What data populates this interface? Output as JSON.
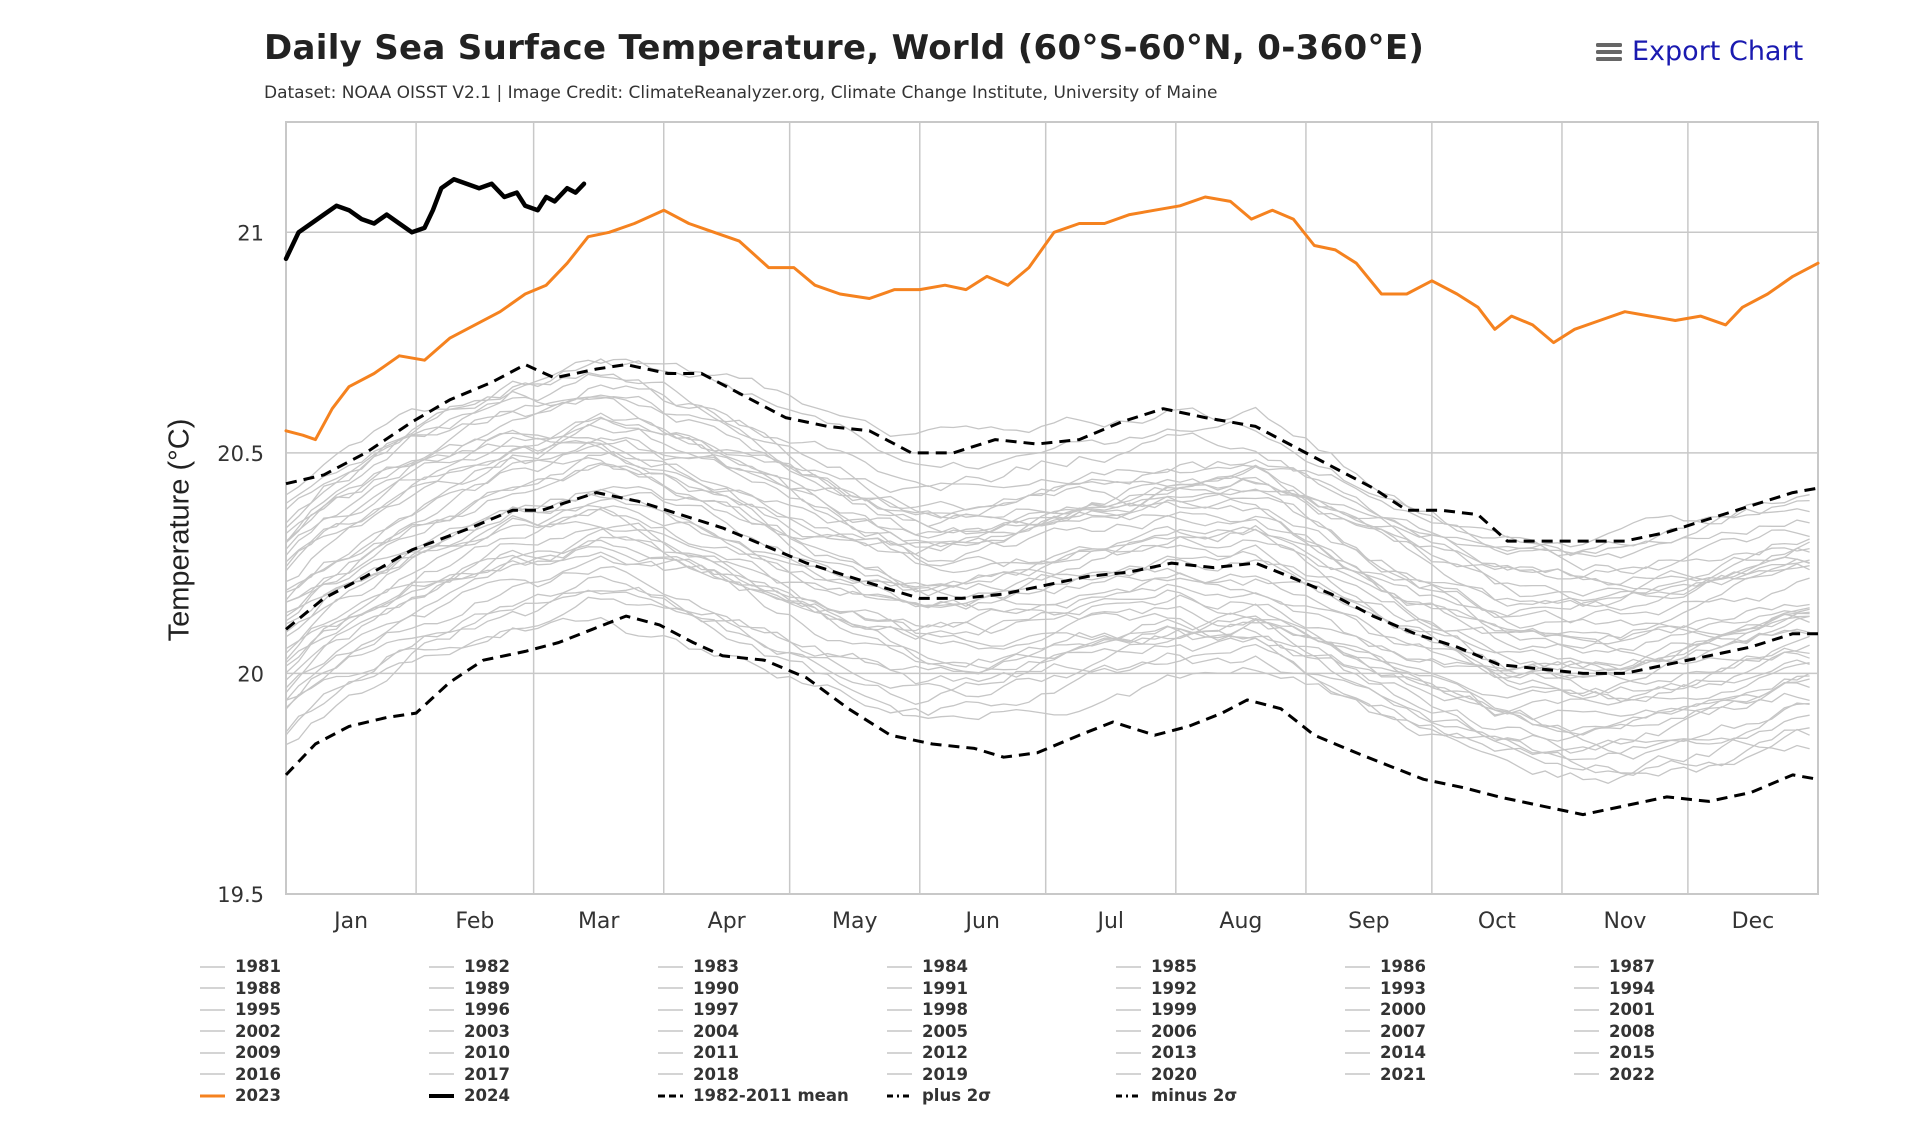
{
  "title": "Daily Sea Surface Temperature, World (60°S-60°N, 0-360°E)",
  "subtitle": "Dataset: NOAA OISST V2.1 | Image Credit: ClimateReanalyzer.org, Climate Change Institute, University of Maine",
  "export_label": "Export Chart",
  "icons": {
    "export": "hamburger-menu-icon"
  },
  "colors": {
    "past_years": "#c6c6c6",
    "y2023": "#f5821f",
    "y2024": "#000000",
    "statistics": "#000000",
    "grid": "#c8c8c8"
  },
  "chart_data": {
    "type": "line",
    "title": "Daily Sea Surface Temperature, World (60°S-60°N, 0-360°E)",
    "subtitle": "Dataset: NOAA OISST V2.1 | Image Credit: ClimateReanalyzer.org, Climate Change Institute, University of Maine",
    "ylabel": "Temperature (°C)",
    "xlabel": "",
    "ylim": [
      19.5,
      21.25
    ],
    "yticks": [
      19.5,
      20,
      20.5,
      21
    ],
    "ytick_labels": [
      "19.5",
      "20",
      "20.5",
      "21"
    ],
    "xlim": [
      1,
      366
    ],
    "month_labels": [
      "Jan",
      "Feb",
      "Mar",
      "Apr",
      "May",
      "Jun",
      "Jul",
      "Aug",
      "Sep",
      "Oct",
      "Nov",
      "Dec"
    ],
    "month_start_days": [
      1,
      32,
      60,
      91,
      121,
      152,
      182,
      213,
      244,
      274,
      305,
      335
    ],
    "grid": true,
    "legend_position": "bottom",
    "series": [
      {
        "name": "2023",
        "style": "solid-orange",
        "points": [
          [
            1,
            20.55
          ],
          [
            5,
            20.54
          ],
          [
            8,
            20.53
          ],
          [
            12,
            20.6
          ],
          [
            16,
            20.65
          ],
          [
            22,
            20.68
          ],
          [
            28,
            20.72
          ],
          [
            34,
            20.71
          ],
          [
            40,
            20.76
          ],
          [
            46,
            20.79
          ],
          [
            52,
            20.82
          ],
          [
            58,
            20.86
          ],
          [
            63,
            20.88
          ],
          [
            68,
            20.93
          ],
          [
            73,
            20.99
          ],
          [
            78,
            21.0
          ],
          [
            84,
            21.02
          ],
          [
            91,
            21.05
          ],
          [
            97,
            21.02
          ],
          [
            103,
            21.0
          ],
          [
            109,
            20.98
          ],
          [
            116,
            20.92
          ],
          [
            122,
            20.92
          ],
          [
            127,
            20.88
          ],
          [
            133,
            20.86
          ],
          [
            140,
            20.85
          ],
          [
            146,
            20.87
          ],
          [
            152,
            20.87
          ],
          [
            158,
            20.88
          ],
          [
            163,
            20.87
          ],
          [
            168,
            20.9
          ],
          [
            173,
            20.88
          ],
          [
            178,
            20.92
          ],
          [
            184,
            21.0
          ],
          [
            190,
            21.02
          ],
          [
            196,
            21.02
          ],
          [
            202,
            21.04
          ],
          [
            208,
            21.05
          ],
          [
            214,
            21.06
          ],
          [
            220,
            21.08
          ],
          [
            226,
            21.07
          ],
          [
            231,
            21.03
          ],
          [
            236,
            21.05
          ],
          [
            241,
            21.03
          ],
          [
            246,
            20.97
          ],
          [
            251,
            20.96
          ],
          [
            256,
            20.93
          ],
          [
            262,
            20.86
          ],
          [
            268,
            20.86
          ],
          [
            274,
            20.89
          ],
          [
            280,
            20.86
          ],
          [
            285,
            20.83
          ],
          [
            289,
            20.78
          ],
          [
            293,
            20.81
          ],
          [
            298,
            20.79
          ],
          [
            303,
            20.75
          ],
          [
            308,
            20.78
          ],
          [
            314,
            20.8
          ],
          [
            320,
            20.82
          ],
          [
            326,
            20.81
          ],
          [
            332,
            20.8
          ],
          [
            338,
            20.81
          ],
          [
            344,
            20.79
          ],
          [
            348,
            20.83
          ],
          [
            354,
            20.86
          ],
          [
            360,
            20.9
          ],
          [
            366,
            20.93
          ]
        ]
      },
      {
        "name": "2024",
        "style": "solid-black-thick",
        "points": [
          [
            1,
            20.94
          ],
          [
            4,
            21.0
          ],
          [
            7,
            21.02
          ],
          [
            10,
            21.04
          ],
          [
            13,
            21.06
          ],
          [
            16,
            21.05
          ],
          [
            19,
            21.03
          ],
          [
            22,
            21.02
          ],
          [
            25,
            21.04
          ],
          [
            28,
            21.02
          ],
          [
            31,
            21.0
          ],
          [
            34,
            21.01
          ],
          [
            36,
            21.05
          ],
          [
            38,
            21.1
          ],
          [
            41,
            21.12
          ],
          [
            44,
            21.11
          ],
          [
            47,
            21.1
          ],
          [
            50,
            21.11
          ],
          [
            53,
            21.08
          ],
          [
            56,
            21.09
          ],
          [
            58,
            21.06
          ],
          [
            61,
            21.05
          ],
          [
            63,
            21.08
          ],
          [
            65,
            21.07
          ],
          [
            68,
            21.1
          ],
          [
            70,
            21.09
          ],
          [
            72,
            21.11
          ]
        ]
      },
      {
        "name": "1982-2011 mean",
        "style": "dashed",
        "points": [
          [
            1,
            20.1
          ],
          [
            10,
            20.17
          ],
          [
            20,
            20.22
          ],
          [
            31,
            20.28
          ],
          [
            45,
            20.33
          ],
          [
            55,
            20.37
          ],
          [
            62,
            20.37
          ],
          [
            75,
            20.41
          ],
          [
            85,
            20.39
          ],
          [
            95,
            20.36
          ],
          [
            105,
            20.33
          ],
          [
            115,
            20.29
          ],
          [
            125,
            20.25
          ],
          [
            135,
            20.22
          ],
          [
            145,
            20.19
          ],
          [
            152,
            20.17
          ],
          [
            162,
            20.17
          ],
          [
            172,
            20.18
          ],
          [
            182,
            20.2
          ],
          [
            192,
            20.22
          ],
          [
            202,
            20.23
          ],
          [
            212,
            20.25
          ],
          [
            222,
            20.24
          ],
          [
            232,
            20.25
          ],
          [
            240,
            20.22
          ],
          [
            250,
            20.18
          ],
          [
            260,
            20.13
          ],
          [
            270,
            20.09
          ],
          [
            280,
            20.06
          ],
          [
            290,
            20.02
          ],
          [
            300,
            20.01
          ],
          [
            310,
            20.0
          ],
          [
            320,
            20.0
          ],
          [
            330,
            20.02
          ],
          [
            340,
            20.04
          ],
          [
            350,
            20.06
          ],
          [
            360,
            20.09
          ],
          [
            366,
            20.09
          ]
        ]
      },
      {
        "name": "plus 2σ",
        "style": "dashed",
        "points": [
          [
            1,
            20.43
          ],
          [
            10,
            20.45
          ],
          [
            20,
            20.5
          ],
          [
            31,
            20.57
          ],
          [
            40,
            20.62
          ],
          [
            50,
            20.66
          ],
          [
            58,
            20.7
          ],
          [
            65,
            20.67
          ],
          [
            75,
            20.69
          ],
          [
            82,
            20.7
          ],
          [
            92,
            20.68
          ],
          [
            100,
            20.68
          ],
          [
            110,
            20.63
          ],
          [
            120,
            20.58
          ],
          [
            130,
            20.56
          ],
          [
            140,
            20.55
          ],
          [
            150,
            20.5
          ],
          [
            160,
            20.5
          ],
          [
            170,
            20.53
          ],
          [
            180,
            20.52
          ],
          [
            190,
            20.53
          ],
          [
            200,
            20.57
          ],
          [
            210,
            20.6
          ],
          [
            220,
            20.58
          ],
          [
            232,
            20.56
          ],
          [
            240,
            20.52
          ],
          [
            250,
            20.47
          ],
          [
            260,
            20.42
          ],
          [
            268,
            20.37
          ],
          [
            276,
            20.37
          ],
          [
            285,
            20.36
          ],
          [
            292,
            20.3
          ],
          [
            300,
            20.3
          ],
          [
            310,
            20.3
          ],
          [
            320,
            20.3
          ],
          [
            330,
            20.32
          ],
          [
            340,
            20.35
          ],
          [
            350,
            20.38
          ],
          [
            360,
            20.41
          ],
          [
            366,
            20.42
          ]
        ]
      },
      {
        "name": "minus 2σ",
        "style": "dashed",
        "points": [
          [
            1,
            19.77
          ],
          [
            8,
            19.84
          ],
          [
            16,
            19.88
          ],
          [
            25,
            19.9
          ],
          [
            32,
            19.91
          ],
          [
            40,
            19.98
          ],
          [
            48,
            20.03
          ],
          [
            58,
            20.05
          ],
          [
            66,
            20.07
          ],
          [
            74,
            20.1
          ],
          [
            82,
            20.13
          ],
          [
            90,
            20.11
          ],
          [
            98,
            20.07
          ],
          [
            105,
            20.04
          ],
          [
            115,
            20.03
          ],
          [
            125,
            19.99
          ],
          [
            135,
            19.92
          ],
          [
            145,
            19.86
          ],
          [
            155,
            19.84
          ],
          [
            165,
            19.83
          ],
          [
            172,
            19.81
          ],
          [
            180,
            19.82
          ],
          [
            190,
            19.86
          ],
          [
            198,
            19.89
          ],
          [
            208,
            19.86
          ],
          [
            216,
            19.88
          ],
          [
            224,
            19.91
          ],
          [
            230,
            19.94
          ],
          [
            238,
            19.92
          ],
          [
            246,
            19.86
          ],
          [
            256,
            19.82
          ],
          [
            264,
            19.79
          ],
          [
            272,
            19.76
          ],
          [
            282,
            19.74
          ],
          [
            290,
            19.72
          ],
          [
            300,
            19.7
          ],
          [
            310,
            19.68
          ],
          [
            320,
            19.7
          ],
          [
            330,
            19.72
          ],
          [
            340,
            19.71
          ],
          [
            350,
            19.73
          ],
          [
            360,
            19.77
          ],
          [
            366,
            19.76
          ]
        ]
      }
    ],
    "background_years": [
      "1981",
      "1982",
      "1983",
      "1984",
      "1985",
      "1986",
      "1987",
      "1988",
      "1989",
      "1990",
      "1991",
      "1992",
      "1993",
      "1994",
      "1995",
      "1996",
      "1997",
      "1998",
      "1999",
      "2000",
      "2001",
      "2002",
      "2003",
      "2004",
      "2005",
      "2006",
      "2007",
      "2008",
      "2009",
      "2010",
      "2011",
      "2012",
      "2013",
      "2014",
      "2015",
      "2016",
      "2017",
      "2018",
      "2019",
      "2020",
      "2021",
      "2022"
    ]
  },
  "legend": [
    {
      "label": "1981",
      "kind": "gray"
    },
    {
      "label": "1982",
      "kind": "gray"
    },
    {
      "label": "1983",
      "kind": "gray"
    },
    {
      "label": "1984",
      "kind": "gray"
    },
    {
      "label": "1985",
      "kind": "gray"
    },
    {
      "label": "1986",
      "kind": "gray"
    },
    {
      "label": "1987",
      "kind": "gray"
    },
    {
      "label": "1988",
      "kind": "gray"
    },
    {
      "label": "1989",
      "kind": "gray"
    },
    {
      "label": "1990",
      "kind": "gray"
    },
    {
      "label": "1991",
      "kind": "gray"
    },
    {
      "label": "1992",
      "kind": "gray"
    },
    {
      "label": "1993",
      "kind": "gray"
    },
    {
      "label": "1994",
      "kind": "gray"
    },
    {
      "label": "1995",
      "kind": "gray"
    },
    {
      "label": "1996",
      "kind": "gray"
    },
    {
      "label": "1997",
      "kind": "gray"
    },
    {
      "label": "1998",
      "kind": "gray"
    },
    {
      "label": "1999",
      "kind": "gray"
    },
    {
      "label": "2000",
      "kind": "gray"
    },
    {
      "label": "2001",
      "kind": "gray"
    },
    {
      "label": "2002",
      "kind": "gray"
    },
    {
      "label": "2003",
      "kind": "gray"
    },
    {
      "label": "2004",
      "kind": "gray"
    },
    {
      "label": "2005",
      "kind": "gray"
    },
    {
      "label": "2006",
      "kind": "gray"
    },
    {
      "label": "2007",
      "kind": "gray"
    },
    {
      "label": "2008",
      "kind": "gray"
    },
    {
      "label": "2009",
      "kind": "gray"
    },
    {
      "label": "2010",
      "kind": "gray"
    },
    {
      "label": "2011",
      "kind": "gray"
    },
    {
      "label": "2012",
      "kind": "gray"
    },
    {
      "label": "2013",
      "kind": "gray"
    },
    {
      "label": "2014",
      "kind": "gray"
    },
    {
      "label": "2015",
      "kind": "gray"
    },
    {
      "label": "2016",
      "kind": "gray"
    },
    {
      "label": "2017",
      "kind": "gray"
    },
    {
      "label": "2018",
      "kind": "gray"
    },
    {
      "label": "2019",
      "kind": "gray"
    },
    {
      "label": "2020",
      "kind": "gray"
    },
    {
      "label": "2021",
      "kind": "gray"
    },
    {
      "label": "2022",
      "kind": "gray"
    },
    {
      "label": "2023",
      "kind": "orange"
    },
    {
      "label": "2024",
      "kind": "black"
    },
    {
      "label": "1982-2011 mean",
      "kind": "dash"
    },
    {
      "label": "plus 2σ",
      "kind": "dashdot"
    },
    {
      "label": "minus 2σ",
      "kind": "dashdot"
    }
  ]
}
